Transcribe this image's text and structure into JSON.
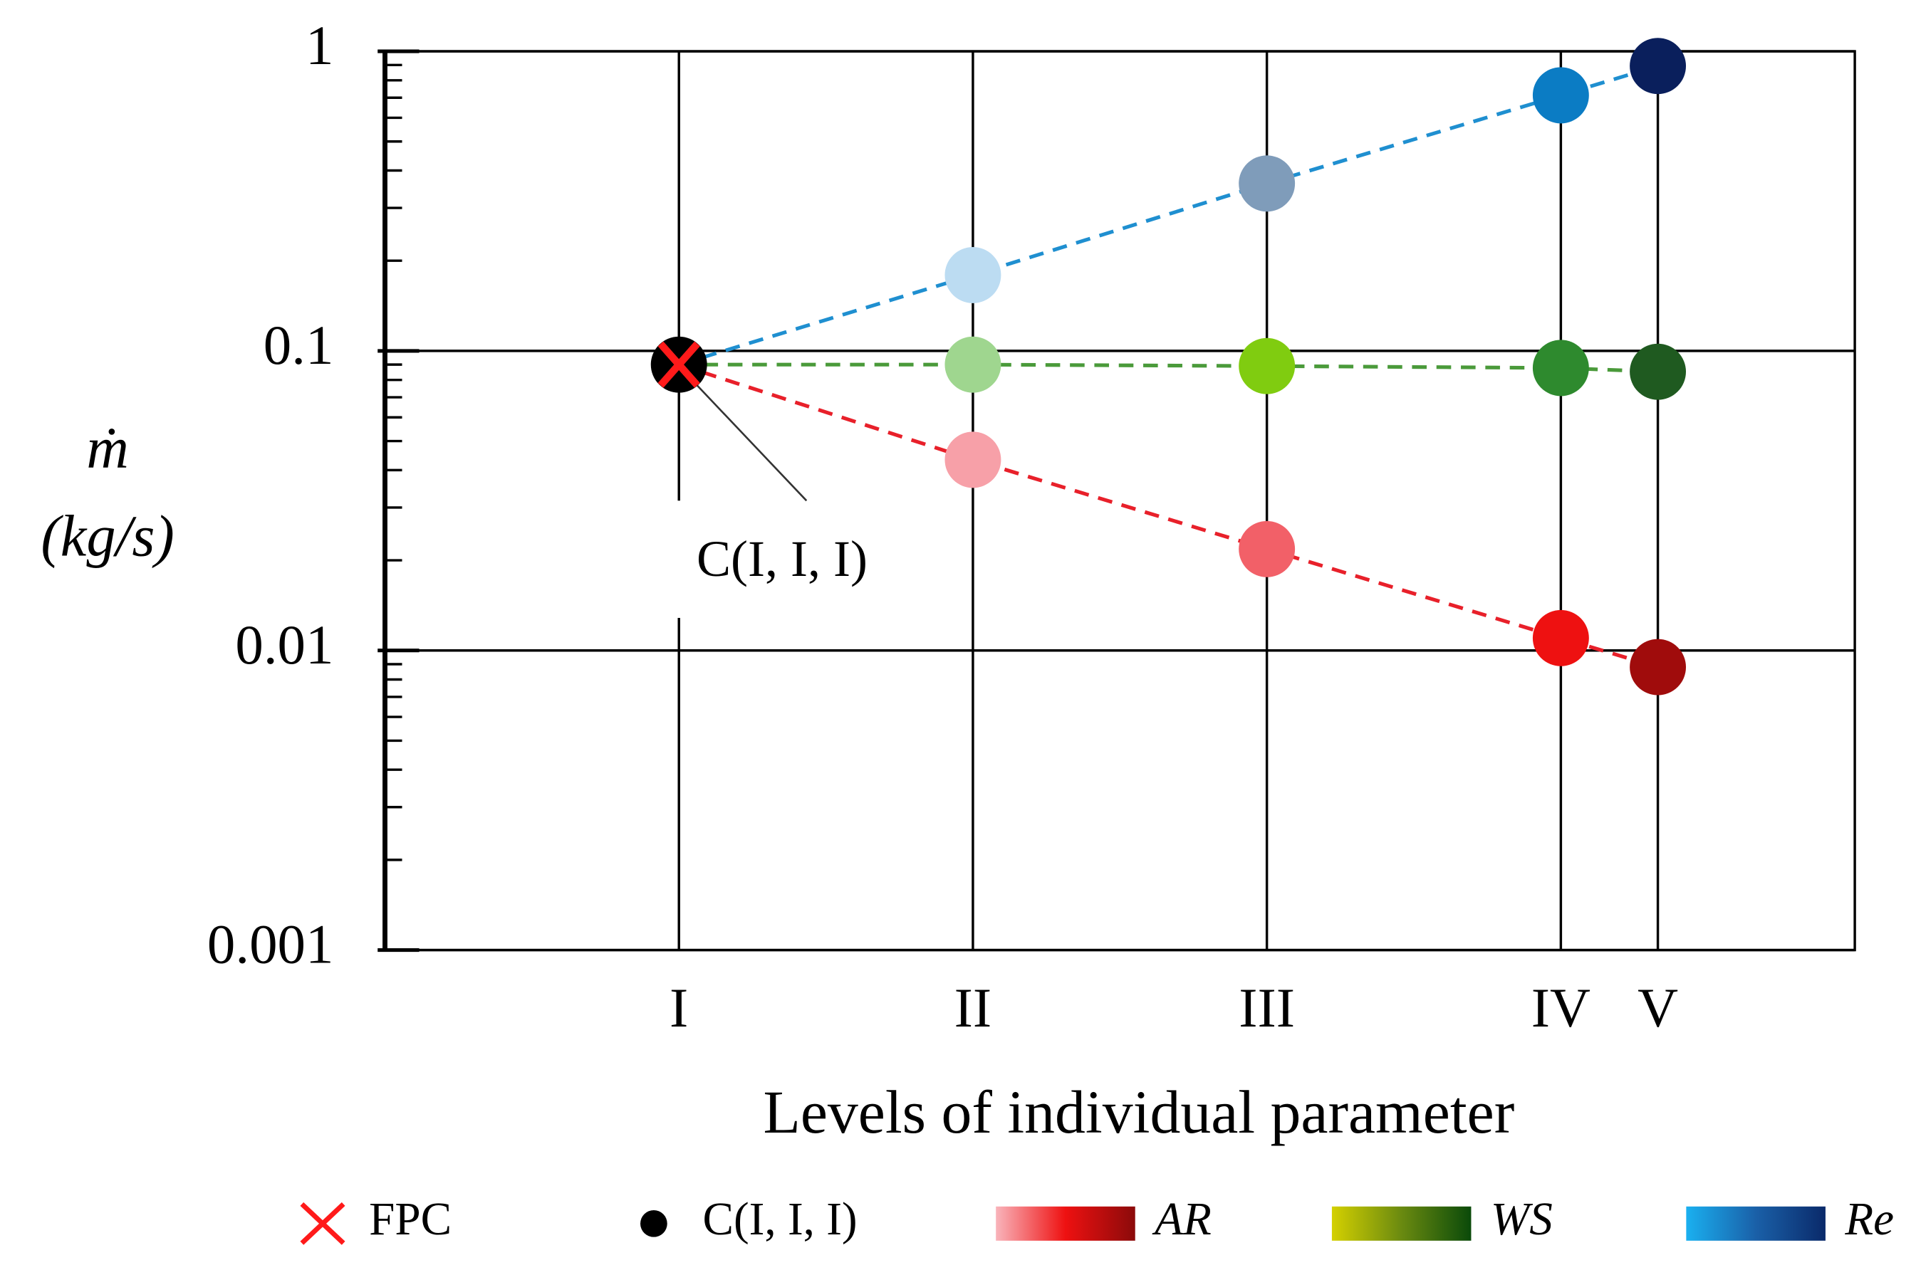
{
  "chart_data": {
    "type": "line",
    "x_label": "Levels of individual parameter",
    "y_label": [
      "ṁ",
      "(kg/s)"
    ],
    "log_y": true,
    "grid": true,
    "xlim": [
      0,
      5
    ],
    "xticks": [
      {
        "value": 1,
        "label": "I"
      },
      {
        "value": 2,
        "label": "II"
      },
      {
        "value": 3,
        "label": "III"
      },
      {
        "value": 4,
        "label": "IV"
      },
      {
        "value": 4.33,
        "label": "V"
      }
    ],
    "ylim": [
      0.001,
      1
    ],
    "yticks": [
      0.001,
      0.01,
      0.1,
      1
    ],
    "center": {
      "name": "C(I, I, I)",
      "x": 1,
      "value": 0.09,
      "color": "#000000"
    },
    "fpc": {
      "name": "FPC",
      "x": 1,
      "value": 0.09,
      "color": "#ff1a1a"
    },
    "annotation": "C(I, I, I)",
    "series": [
      {
        "name": "AR",
        "color": "#e8202a",
        "x": [
          2,
          3,
          4,
          4.33
        ],
        "values": [
          0.0433,
          0.0218,
          0.011,
          0.0088
        ],
        "point_colors": [
          "#f7a0a8",
          "#f26068",
          "#ee1111",
          "#a00c0c"
        ],
        "legend_gradient": [
          "#f9b4bb",
          "#ee1111",
          "#8b0a0a"
        ]
      },
      {
        "name": "WS",
        "color": "#4a9a3a",
        "x": [
          2,
          3,
          4,
          4.33
        ],
        "values": [
          0.09,
          0.089,
          0.0877,
          0.0852
        ],
        "point_colors": [
          "#9fd68f",
          "#80cc10",
          "#2e8a2e",
          "#1f5a20"
        ],
        "legend_gradient": [
          "#d4d000",
          "#6a8a10",
          "#0a4a0a"
        ]
      },
      {
        "name": "Re",
        "color": "#1f8fd0",
        "x": [
          2,
          3,
          4,
          4.33
        ],
        "values": [
          0.179,
          0.362,
          0.713,
          0.893
        ],
        "point_colors": [
          "#bcdcf2",
          "#7f9cba",
          "#0b7cc4",
          "#0a1f5c"
        ],
        "legend_gradient": [
          "#1ab0f0",
          "#1a60a8",
          "#0a2a6a"
        ]
      }
    ]
  }
}
